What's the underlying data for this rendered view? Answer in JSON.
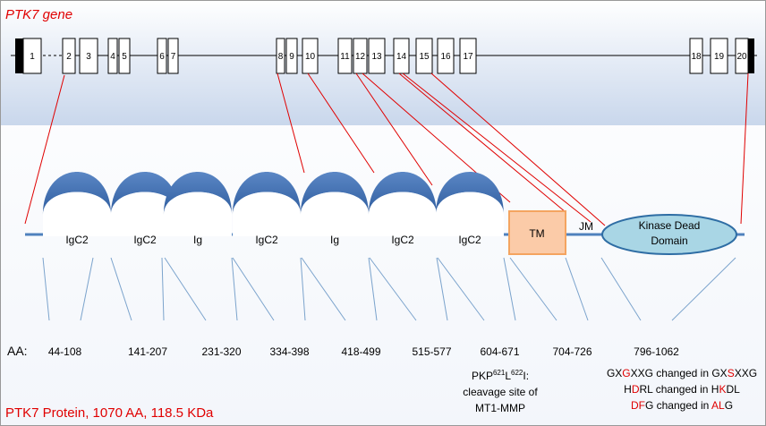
{
  "gene": {
    "title": "PTK7 gene",
    "exons": [
      "1",
      "2",
      "3",
      "4",
      "5",
      "6",
      "7",
      "8",
      "9",
      "10",
      "11",
      "12",
      "13",
      "14",
      "15",
      "16",
      "17",
      "18",
      "19",
      "20"
    ]
  },
  "protein": {
    "domains": [
      "IgC2",
      "IgC2",
      "Ig",
      "IgC2",
      "Ig",
      "IgC2",
      "IgC2",
      "TM"
    ],
    "jm": "JM",
    "kinase": [
      "Kinase Dead",
      "Domain"
    ]
  },
  "aa": {
    "label": "AA:",
    "ranges": [
      "44-108",
      "141-207",
      "231-320",
      "334-398",
      "418-499",
      "515-577",
      "604-671",
      "704-726",
      "796-1062"
    ]
  },
  "cleavage": {
    "line1": [
      "PKP",
      "621",
      "L",
      "622",
      "I:"
    ],
    "line2": "cleavage site of",
    "line3": "MT1-MMP"
  },
  "motifs": [
    [
      "GX",
      "G",
      "XXG changed in GX",
      "S",
      "XXG"
    ],
    [
      "H",
      "D",
      "RL changed in H",
      "K",
      "DL"
    ],
    [
      "",
      "DF",
      "G changed in ",
      "AL",
      "G"
    ]
  ],
  "footer": "PTK7 Protein, 1070 AA, 118.5 KDa"
}
